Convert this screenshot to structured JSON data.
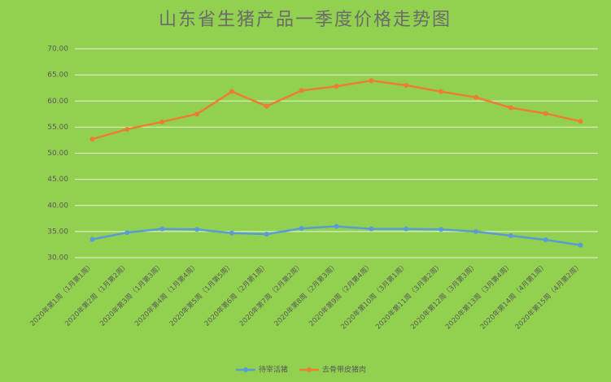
{
  "chart_data": {
    "type": "line",
    "title": "山东省生猪产品一季度价格走势图",
    "categories": [
      "2020年第1周（1月第1周）",
      "2020年第2周（1月第2周）",
      "2020年第3周（1月第3周）",
      "2020年第4周（1月第4周）",
      "2020年第5周（1月第5周）",
      "2020年第6周（2月第1周）",
      "2020年第7周（2月第2周）",
      "2020年第8周（2月第3周）",
      "2020年第9周（2月第4周）",
      "2020年第10周（3月第1周）",
      "2020年第11周（3月第2周）",
      "2020年第12周（3月第3周）",
      "2020年第13周（3月第4周）",
      "2020年第14周（4月第1周）",
      "2020年第15周（4月第2周）"
    ],
    "series": [
      {
        "name": "待宰活猪",
        "color": "#5b9bd5",
        "values": [
          33.5,
          34.8,
          35.5,
          35.4,
          34.7,
          34.5,
          35.6,
          36.0,
          35.5,
          35.5,
          35.4,
          35.0,
          34.2,
          33.4,
          32.4
        ]
      },
      {
        "name": "去骨带皮猪肉",
        "color": "#ed7d31",
        "values": [
          52.7,
          54.6,
          56.0,
          57.5,
          61.8,
          59.0,
          62.0,
          62.8,
          63.9,
          63.0,
          61.8,
          60.7,
          58.7,
          57.6,
          56.1
        ]
      }
    ],
    "ylim": [
      30,
      70
    ],
    "yticks": [
      {
        "value": 30,
        "label": "30.00"
      },
      {
        "value": 35,
        "label": "35.00"
      },
      {
        "value": 40,
        "label": "40.00"
      },
      {
        "value": 45,
        "label": "45.00"
      },
      {
        "value": 50,
        "label": "50.00"
      },
      {
        "value": 55,
        "label": "55.00"
      },
      {
        "value": 60,
        "label": "60.00"
      },
      {
        "value": 65,
        "label": "65.00"
      },
      {
        "value": 70,
        "label": "70.00"
      }
    ],
    "grid": true,
    "legend": "bottom",
    "background": "#92d050"
  }
}
